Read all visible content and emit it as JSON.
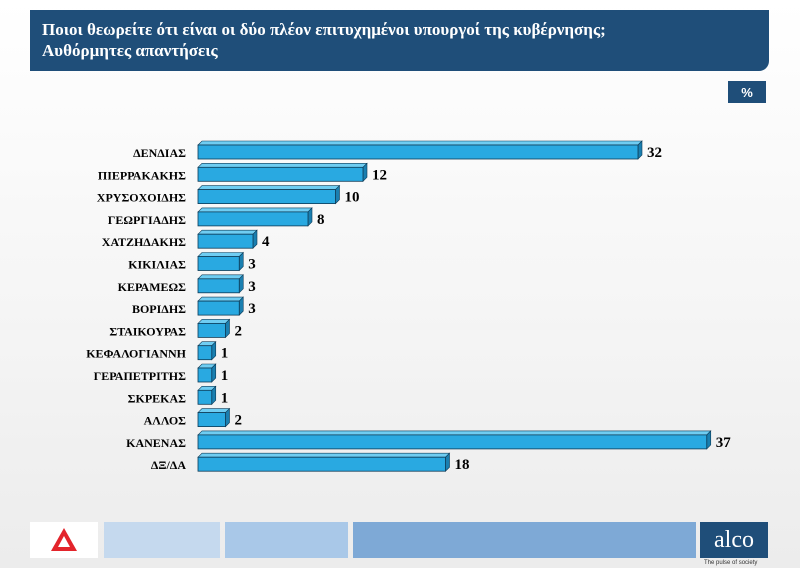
{
  "title": {
    "line1": "Ποιοι θεωρείτε ότι είναι οι δύο πλέον επιτυχημένοι υπουργοί της κυβέρνησης;",
    "line2": "Αυθόρμητες απαντήσεις"
  },
  "unit_label": "%",
  "brand": {
    "logo_text": "alco",
    "tagline": "The pulse of society"
  },
  "colors": {
    "banner": "#1f4e79",
    "bar": "#29a9e1",
    "bar_dark": "#1a7fb0",
    "bar_top": "#6fcdf2"
  },
  "chart_data": {
    "type": "bar",
    "orientation": "horizontal",
    "categories": [
      "ΔΕΝΔΙΑΣ",
      "ΠΙΕΡΡΑΚΑΚΗΣ",
      "ΧΡΥΣΟΧΟΙΔΗΣ",
      "ΓΕΩΡΓΙΑΔΗΣ",
      "ΧΑΤΖΗΔΑΚΗΣ",
      "ΚΙΚΙΛΙΑΣ",
      "ΚΕΡΑΜΕΩΣ",
      "ΒΟΡΙΔΗΣ",
      "ΣΤΑΙΚΟΥΡΑΣ",
      "ΚΕΦΑΛΟΓΙΑΝΝΗ",
      "ΓΕΡΑΠΕΤΡΙΤΗΣ",
      "ΣΚΡΕΚΑΣ",
      "ΑΛΛΟΣ",
      "ΚΑΝΕΝΑΣ",
      "ΔΞ/ΔΑ"
    ],
    "values": [
      32,
      12,
      10,
      8,
      4,
      3,
      3,
      3,
      2,
      1,
      1,
      1,
      2,
      37,
      18
    ],
    "xlim": [
      0,
      40
    ],
    "grid": false,
    "legend": "none"
  }
}
